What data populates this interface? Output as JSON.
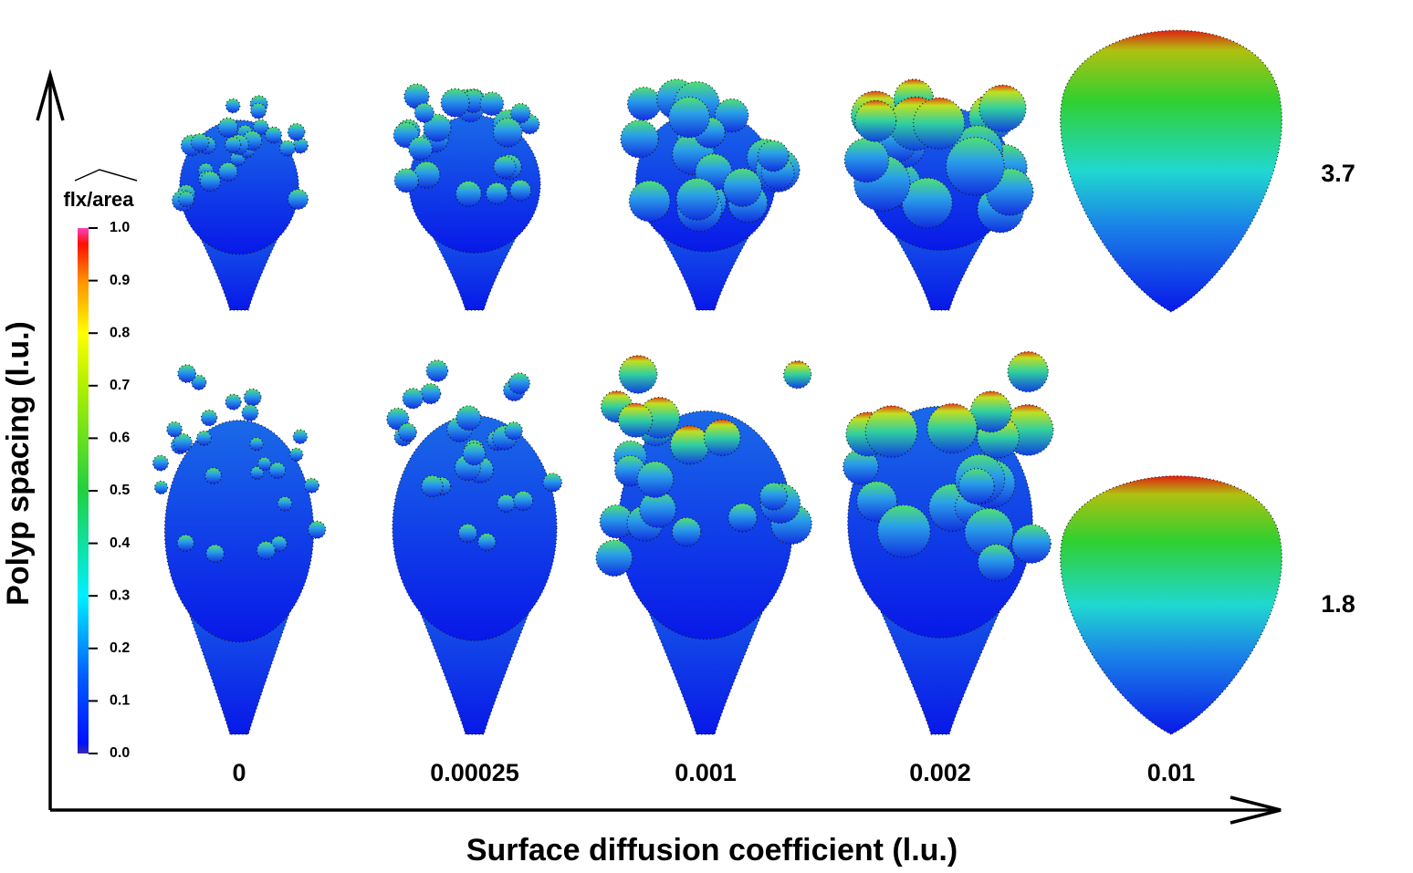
{
  "figure": {
    "y_axis_label": "Polyp spacing (l.u.)",
    "x_axis_label": "Surface diffusion coefficient (l.u.)",
    "columns": [
      "0",
      "0.00025",
      "0.001",
      "0.002",
      "0.01"
    ],
    "rows": [
      "3.7",
      "1.8"
    ],
    "colorbar": {
      "title": "flx/area",
      "ticks": [
        {
          "value": 1,
          "label": "1.0"
        },
        {
          "value": 0.9,
          "label": "0.9"
        },
        {
          "value": 0.8,
          "label": "0.8"
        },
        {
          "value": 0.7,
          "label": "0.7"
        },
        {
          "value": 0.6,
          "label": "0.6"
        },
        {
          "value": 0.5,
          "label": "0.5"
        },
        {
          "value": 0.4,
          "label": "0.4"
        },
        {
          "value": 0.3,
          "label": "0.3"
        },
        {
          "value": 0.2,
          "label": "0.2"
        },
        {
          "value": 0.1,
          "label": "0.1"
        },
        {
          "value": 0,
          "label": "0.0"
        }
      ]
    }
  }
}
